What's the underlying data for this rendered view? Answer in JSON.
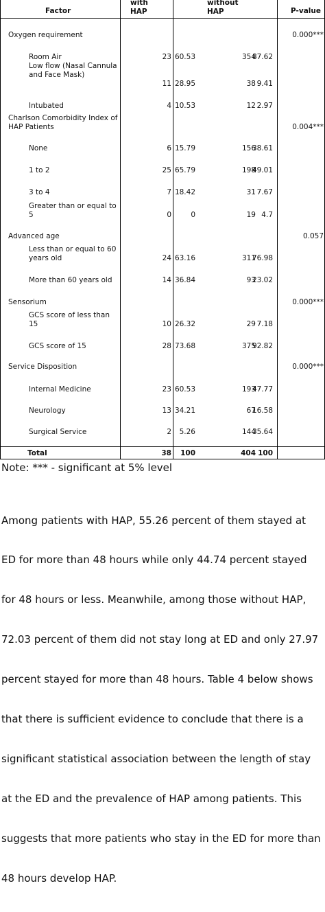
{
  "table": {
    "headers": {
      "factor": "Factor",
      "with_line1": "with",
      "with_line2": "HAP",
      "without_line1": "without",
      "without_line2": "HAP",
      "pvalue": "P-value"
    },
    "rows": [
      {
        "label": "Oxygen requirement",
        "pvalue": "0.000***"
      },
      {
        "label": "Room Air",
        "with_n": "23",
        "with_pct": "60.53",
        "without_n": "354",
        "without_pct": "87.62"
      },
      {
        "label": "Low flow (Nasal Cannula and Face Mask)",
        "with_n": "11",
        "with_pct": "28.95",
        "without_n": "38",
        "without_pct": "9.41"
      },
      {
        "label": "Intubated",
        "with_n": "4",
        "with_pct": "10.53",
        "without_n": "12",
        "without_pct": "2.97"
      },
      {
        "label": "Charlson Comorbidity Index of HAP Patients",
        "pvalue": "0.004***"
      },
      {
        "label": "None",
        "with_n": "6",
        "with_pct": "15.79",
        "without_n": "156",
        "without_pct": "38.61"
      },
      {
        "label": "1 to 2",
        "with_n": "25",
        "with_pct": "65.79",
        "without_n": "198",
        "without_pct": "49.01"
      },
      {
        "label": "3 to 4",
        "with_n": "7",
        "with_pct": "18.42",
        "without_n": "31",
        "without_pct": "7.67"
      },
      {
        "label": "Greater than or equal to 5",
        "with_n": "0",
        "with_pct": "0",
        "without_n": "19",
        "without_pct": "4.7"
      },
      {
        "label": "Advanced age",
        "pvalue": "0.057"
      },
      {
        "label": "Less than or equal to 60 years old",
        "with_n": "24",
        "with_pct": "63.16",
        "without_n": "311",
        "without_pct": "76.98"
      },
      {
        "label": "More than 60 years old",
        "with_n": "14",
        "with_pct": "36.84",
        "without_n": "93",
        "without_pct": "23.02"
      },
      {
        "label": "Sensorium",
        "pvalue": "0.000***"
      },
      {
        "label": "GCS score of less than 15",
        "with_n": "10",
        "with_pct": "26.32",
        "without_n": "29",
        "without_pct": "7.18"
      },
      {
        "label": "GCS score of 15",
        "with_n": "28",
        "with_pct": "73.68",
        "without_n": "375",
        "without_pct": "92.82"
      },
      {
        "label": "Service Disposition",
        "pvalue": "0.000***"
      },
      {
        "label": "Internal Medicine",
        "with_n": "23",
        "with_pct": "60.53",
        "without_n": "193",
        "without_pct": "47.77"
      },
      {
        "label": "Neurology",
        "with_n": "13",
        "with_pct": "34.21",
        "without_n": "67",
        "without_pct": "16.58"
      },
      {
        "label": "Surgical Service",
        "with_n": "2",
        "with_pct": "5.26",
        "without_n": "144",
        "without_pct": "35.64"
      }
    ],
    "total": {
      "label": "Total",
      "with_n": "38",
      "with_pct": "100",
      "without_n": "404",
      "without_pct": "100"
    }
  },
  "note": "Note: *** - significant at 5% level",
  "paragraph": [
    "Among patients with HAP, 55.26 percent of them stayed at",
    "ED for more than 48 hours while only 44.74 percent stayed",
    "for 48 hours or less. Meanwhile, among those without HAP,",
    "72.03 percent of them did not stay long at ED and only 27.97",
    "percent stayed for more than 48 hours. Table 4 below shows",
    "that there is sufficient evidence to conclude that there is a",
    "significant statistical association between the length of stay",
    "at the ED and the prevalence of HAP among patients. This",
    "suggests that more patients who stay in the ED for more than",
    "48 hours develop HAP."
  ]
}
